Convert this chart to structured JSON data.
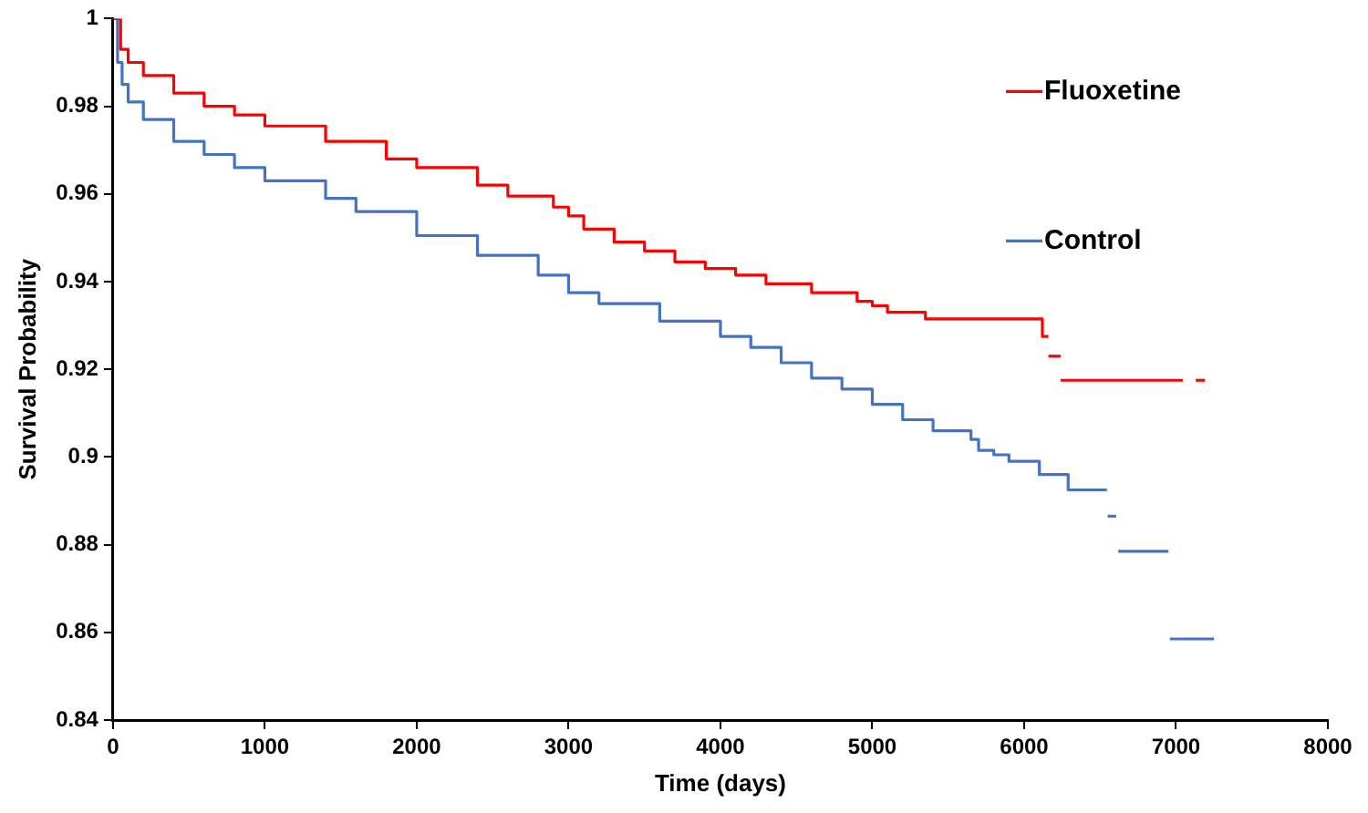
{
  "chart_data": {
    "type": "step",
    "xlabel": "Time (days)",
    "ylabel": "Survival Probability",
    "xlim": [
      0,
      8000
    ],
    "xticks": [
      0,
      1000,
      2000,
      3000,
      4000,
      5000,
      6000,
      7000,
      8000
    ],
    "ylim": [
      0.84,
      1
    ],
    "yticks": [
      0.84,
      0.86,
      0.88,
      0.9,
      0.92,
      0.94,
      0.96,
      0.98,
      1
    ],
    "grid": false,
    "legend": "top right",
    "marker": "none",
    "line_style": "solid",
    "series": [
      {
        "name": "Fluoxetine",
        "color": "#ff0000",
        "x": [
          0,
          50,
          100,
          200,
          400,
          600,
          800,
          1000,
          1400,
          1800,
          2000,
          2400,
          2600,
          2900,
          3000,
          3100,
          3300,
          3500,
          3700,
          3900,
          4100,
          4300,
          4600,
          4900,
          5000,
          5100,
          5350,
          6120,
          6160
        ],
        "values": [
          1,
          0.993,
          0.99,
          0.987,
          0.983,
          0.98,
          0.978,
          0.9755,
          0.972,
          0.968,
          0.966,
          0.962,
          0.9595,
          0.957,
          0.955,
          0.952,
          0.949,
          0.947,
          0.9445,
          0.943,
          0.9415,
          0.9395,
          0.9375,
          0.9355,
          0.9345,
          0.933,
          0.9315,
          0.9275,
          0.9275
        ]
      },
      {
        "color": "#ff0000",
        "x": [
          6160,
          6240
        ],
        "values": [
          0.923,
          0.923
        ]
      },
      {
        "color": "#ff0000",
        "x": [
          6240,
          7045
        ],
        "values": [
          0.9175,
          0.9175
        ]
      },
      {
        "color": "#ff0000",
        "x": [
          7130,
          7190
        ],
        "values": [
          0.9175,
          0.9175
        ]
      },
      {
        "name": "Control",
        "color": "#4472c4",
        "x": [
          0,
          30,
          60,
          100,
          200,
          400,
          600,
          800,
          1000,
          1400,
          1600,
          2000,
          2400,
          2800,
          3000,
          3200,
          3600,
          4000,
          4200,
          4400,
          4600,
          4800,
          5000,
          5200,
          5400,
          5650,
          5700,
          5800,
          5900,
          6100,
          6290,
          6545
        ],
        "values": [
          1,
          0.99,
          0.985,
          0.981,
          0.977,
          0.972,
          0.969,
          0.966,
          0.963,
          0.959,
          0.956,
          0.9505,
          0.946,
          0.9415,
          0.9375,
          0.935,
          0.931,
          0.9275,
          0.925,
          0.9215,
          0.918,
          0.9155,
          0.912,
          0.9085,
          0.906,
          0.904,
          0.9015,
          0.9005,
          0.899,
          0.896,
          0.8925,
          0.8925
        ]
      },
      {
        "color": "#4472c4",
        "x": [
          6550,
          6606
        ],
        "values": [
          0.8865,
          0.8865
        ]
      },
      {
        "color": "#4472c4",
        "x": [
          6620,
          6950
        ],
        "values": [
          0.8785,
          0.8785
        ]
      },
      {
        "color": "#4472c4",
        "x": [
          6960,
          7250
        ],
        "values": [
          0.8585,
          0.8585
        ]
      }
    ]
  }
}
